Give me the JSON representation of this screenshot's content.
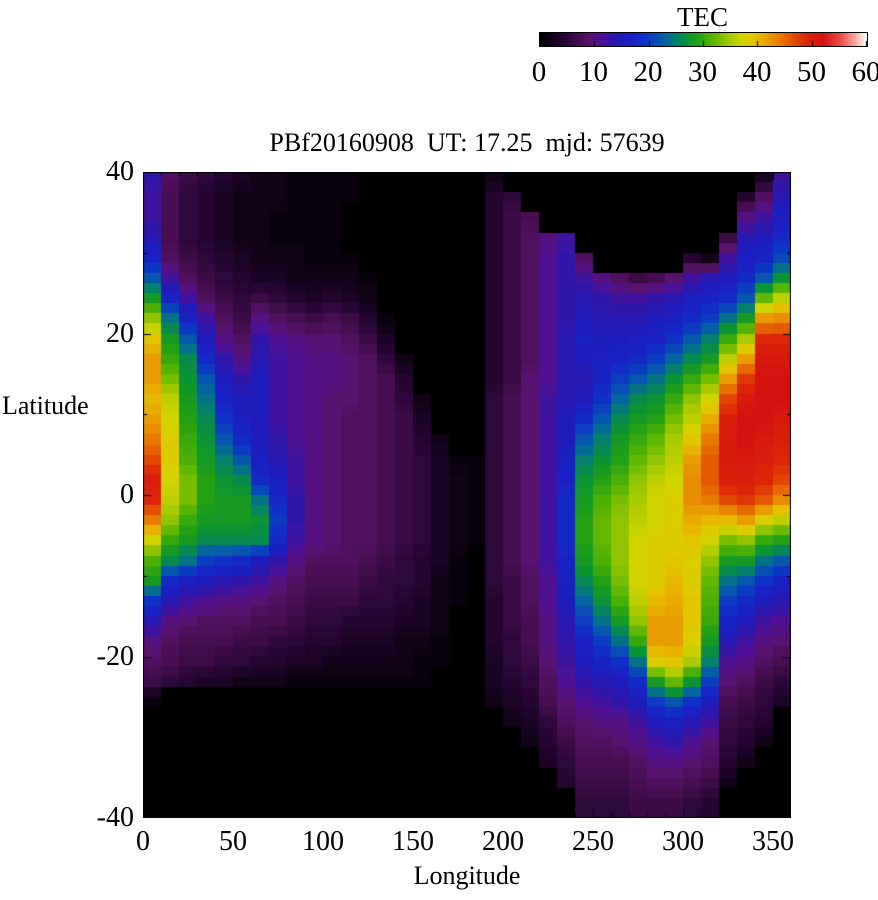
{
  "colorbar": {
    "title": "TEC",
    "min": 0,
    "max": 60,
    "tick_values": [
      0,
      10,
      20,
      30,
      40,
      50,
      60
    ],
    "tick_labels": [
      "0",
      "10",
      "20",
      "30",
      "40",
      "50",
      "60"
    ],
    "palette_stops": [
      [
        0,
        0,
        0,
        0
      ],
      [
        3,
        28,
        4,
        38
      ],
      [
        5,
        45,
        8,
        58
      ],
      [
        7,
        70,
        14,
        80
      ],
      [
        9,
        88,
        18,
        112
      ],
      [
        10,
        84,
        17,
        130
      ],
      [
        11,
        80,
        16,
        148
      ],
      [
        13,
        48,
        22,
        168
      ],
      [
        15,
        30,
        28,
        188
      ],
      [
        17,
        26,
        34,
        198
      ],
      [
        19,
        16,
        48,
        200
      ],
      [
        21,
        8,
        72,
        185
      ],
      [
        23,
        4,
        100,
        160
      ],
      [
        25,
        4,
        128,
        108
      ],
      [
        27,
        10,
        148,
        52
      ],
      [
        29,
        35,
        160,
        20
      ],
      [
        31,
        75,
        175,
        5
      ],
      [
        33,
        120,
        190,
        0
      ],
      [
        35,
        170,
        202,
        0
      ],
      [
        37,
        210,
        212,
        0
      ],
      [
        39,
        228,
        198,
        0
      ],
      [
        41,
        232,
        172,
        0
      ],
      [
        43,
        232,
        140,
        0
      ],
      [
        45,
        230,
        105,
        0
      ],
      [
        47,
        226,
        70,
        4
      ],
      [
        49,
        220,
        38,
        10
      ],
      [
        52,
        212,
        18,
        16
      ],
      [
        55,
        232,
        72,
        64
      ],
      [
        58,
        246,
        170,
        164
      ],
      [
        60,
        255,
        255,
        255
      ]
    ]
  },
  "plot": {
    "title": "PBf20160908  UT: 17.25  mjd: 57639",
    "xlabel": "Longitude",
    "ylabel": "Latitude",
    "x_tick_values": [
      0,
      50,
      100,
      150,
      200,
      250,
      300,
      350
    ],
    "x_tick_labels": [
      "0",
      "50",
      "100",
      "150",
      "200",
      "250",
      "300",
      "350"
    ],
    "y_tick_values": [
      40,
      20,
      0,
      -20,
      -40
    ],
    "y_tick_labels": [
      "40",
      "20",
      "0",
      "-20",
      "-40"
    ]
  },
  "chart_data": {
    "type": "heatmap",
    "title": "PBf20160908  UT: 17.25  mjd: 57639",
    "xlabel": "Longitude",
    "ylabel": "Latitude",
    "xlim": [
      0,
      360
    ],
    "ylim": [
      -40,
      40
    ],
    "x_minor_step": 10,
    "y_minor_step": 10,
    "colorbar_title": "TEC",
    "colorbar_range": [
      0,
      60
    ],
    "lon_step_deg": 10,
    "lat_step_deg": 2.5,
    "lon_col_centers": [
      5,
      15,
      25,
      35,
      45,
      55,
      65,
      75,
      85,
      95,
      105,
      115,
      125,
      135,
      145,
      155,
      165,
      175,
      185,
      195,
      205,
      215,
      225,
      235,
      245,
      255,
      265,
      275,
      285,
      295,
      305,
      315,
      325,
      335,
      345,
      355
    ],
    "lat_row_centers": [
      38.75,
      36.25,
      33.75,
      31.25,
      28.75,
      26.25,
      23.75,
      21.25,
      18.75,
      16.25,
      13.75,
      11.25,
      8.75,
      6.25,
      3.75,
      1.25,
      -1.25,
      -3.75,
      -6.25,
      -8.75,
      -11.25,
      -13.75,
      -16.25,
      -18.75,
      -21.25,
      -23.75,
      -26.25,
      -28.75,
      -31.25,
      -33.75,
      -36.25,
      -38.75
    ],
    "values_orientation": "outer array = longitude columns 0..360 step 10; inner array = TEC values from lat +40 (top) to -40 (bottom), 2.5 deg cells",
    "values_cols_by_lon": [
      [
        13,
        12,
        12,
        14,
        17,
        22,
        28,
        34,
        39,
        42,
        42,
        40,
        42,
        44,
        47,
        50,
        49,
        44,
        37,
        31,
        28,
        19,
        14,
        10,
        8,
        6,
        1,
        0,
        0,
        0,
        0,
        0
      ],
      [
        8,
        7,
        7,
        7,
        8,
        12,
        17,
        24,
        28,
        30,
        33,
        36,
        37,
        38,
        38,
        37,
        36,
        34,
        30,
        26,
        18,
        14,
        10,
        8,
        7,
        5,
        0,
        0,
        0,
        0,
        0,
        0
      ],
      [
        6,
        5,
        5,
        5,
        6,
        8,
        12,
        17,
        22,
        26,
        27,
        28,
        29,
        30,
        31,
        33,
        33,
        30,
        28,
        24,
        16,
        12,
        9,
        7,
        6,
        4,
        0,
        0,
        0,
        0,
        0,
        0
      ],
      [
        5,
        4,
        4,
        4,
        5,
        6,
        8,
        12,
        15,
        18,
        22,
        24,
        26,
        27,
        28,
        29,
        29,
        28,
        26,
        20,
        15,
        11,
        8,
        7,
        6,
        3,
        0,
        0,
        0,
        0,
        0,
        0
      ],
      [
        4,
        3,
        3,
        3,
        4,
        5,
        6,
        8,
        10,
        13,
        15,
        17,
        19,
        22,
        25,
        27,
        28,
        28,
        26,
        19,
        14,
        10,
        8,
        7,
        5,
        3,
        0,
        0,
        0,
        0,
        0,
        0
      ],
      [
        3,
        2,
        2,
        2,
        3,
        4,
        5,
        6,
        8,
        10,
        13,
        15,
        16,
        18,
        22,
        26,
        28,
        28,
        26,
        18,
        13,
        10,
        8,
        6,
        5,
        2,
        0,
        0,
        0,
        0,
        0,
        0
      ],
      [
        2,
        2,
        2,
        2,
        2,
        3,
        6,
        10,
        13,
        14,
        15,
        15,
        15,
        15,
        16,
        18,
        24,
        27,
        26,
        15,
        12,
        9,
        7,
        6,
        4,
        2,
        0,
        0,
        0,
        0,
        0,
        0
      ],
      [
        2,
        2,
        1,
        1,
        2,
        3,
        5,
        8,
        11,
        12,
        12,
        12,
        12,
        13,
        14,
        16,
        18,
        20,
        18,
        13,
        10,
        8,
        7,
        5,
        4,
        2,
        0,
        0,
        0,
        0,
        0,
        0
      ],
      [
        1,
        1,
        1,
        1,
        2,
        2,
        4,
        7,
        10,
        11,
        11,
        11,
        11,
        11,
        12,
        12,
        13,
        13,
        12,
        10,
        8,
        7,
        6,
        5,
        3,
        1,
        0,
        0,
        0,
        0,
        0,
        0
      ],
      [
        1,
        1,
        1,
        1,
        1,
        2,
        3,
        6,
        9,
        10,
        10,
        10,
        10,
        10,
        10,
        10,
        10,
        10,
        10,
        8,
        7,
        6,
        5,
        4,
        3,
        1,
        0,
        0,
        0,
        0,
        0,
        0
      ],
      [
        1,
        1,
        1,
        1,
        1,
        2,
        4,
        7,
        9,
        10,
        10,
        9,
        9,
        9,
        9,
        9,
        9,
        9,
        9,
        8,
        7,
        6,
        5,
        4,
        2,
        1,
        0,
        0,
        0,
        0,
        0,
        0
      ],
      [
        1,
        1,
        0,
        0,
        1,
        2,
        3,
        6,
        8,
        9,
        9,
        9,
        8,
        8,
        8,
        8,
        8,
        8,
        8,
        8,
        7,
        6,
        4,
        3,
        2,
        1,
        0,
        0,
        0,
        0,
        0,
        0
      ],
      [
        0,
        0,
        0,
        0,
        0,
        1,
        2,
        4,
        6,
        8,
        8,
        8,
        8,
        8,
        8,
        8,
        8,
        8,
        8,
        7,
        6,
        5,
        4,
        3,
        2,
        1,
        0,
        0,
        0,
        0,
        0,
        0
      ],
      [
        0,
        0,
        0,
        0,
        0,
        0,
        0,
        1,
        3,
        5,
        7,
        7,
        7,
        7,
        7,
        7,
        7,
        7,
        7,
        6,
        5,
        5,
        4,
        3,
        2,
        1,
        0,
        0,
        0,
        0,
        0,
        0
      ],
      [
        0,
        0,
        0,
        0,
        0,
        0,
        0,
        0,
        0,
        2,
        4,
        5,
        6,
        6,
        6,
        6,
        6,
        6,
        6,
        5,
        5,
        4,
        3,
        2,
        2,
        1,
        0,
        0,
        0,
        0,
        0,
        0
      ],
      [
        0,
        0,
        0,
        0,
        0,
        0,
        0,
        0,
        0,
        0,
        0,
        2,
        3,
        4,
        5,
        5,
        5,
        5,
        5,
        4,
        4,
        3,
        3,
        2,
        1,
        1,
        0,
        0,
        0,
        0,
        0,
        0
      ],
      [
        0,
        0,
        0,
        0,
        0,
        0,
        0,
        0,
        0,
        0,
        0,
        0,
        0,
        2,
        3,
        3,
        3,
        3,
        3,
        3,
        2,
        2,
        2,
        1,
        1,
        0,
        0,
        0,
        0,
        0,
        0,
        0
      ],
      [
        0,
        0,
        0,
        0,
        0,
        0,
        0,
        0,
        0,
        0,
        0,
        0,
        0,
        0,
        1,
        2,
        2,
        2,
        2,
        1,
        1,
        1,
        0,
        0,
        0,
        0,
        0,
        0,
        0,
        0,
        0,
        0
      ],
      [
        0,
        0,
        0,
        0,
        0,
        0,
        0,
        0,
        0,
        0,
        0,
        0,
        0,
        0,
        1,
        1,
        1,
        1,
        1,
        0,
        0,
        0,
        0,
        0,
        0,
        0,
        0,
        0,
        0,
        0,
        0,
        0
      ],
      [
        2,
        4,
        4,
        4,
        4,
        4,
        4,
        4,
        4,
        4,
        4,
        5,
        5,
        5,
        5,
        5,
        5,
        5,
        5,
        5,
        5,
        4,
        4,
        4,
        3,
        3,
        2,
        0,
        0,
        0,
        0,
        0
      ],
      [
        0,
        5,
        6,
        6,
        6,
        6,
        6,
        6,
        6,
        6,
        6,
        7,
        7,
        7,
        7,
        7,
        7,
        7,
        7,
        7,
        6,
        6,
        6,
        5,
        5,
        4,
        3,
        2,
        0,
        0,
        0,
        0
      ],
      [
        0,
        0,
        7,
        8,
        8,
        8,
        8,
        8,
        8,
        8,
        9,
        9,
        9,
        9,
        9,
        9,
        9,
        9,
        9,
        9,
        8,
        8,
        7,
        7,
        6,
        5,
        4,
        3,
        2,
        0,
        0,
        0
      ],
      [
        0,
        0,
        0,
        10,
        11,
        11,
        11,
        11,
        11,
        11,
        11,
        12,
        12,
        12,
        12,
        12,
        12,
        12,
        12,
        12,
        11,
        11,
        10,
        10,
        9,
        8,
        7,
        5,
        4,
        3,
        0,
        0
      ],
      [
        0,
        0,
        0,
        12,
        13,
        13,
        13,
        13,
        14,
        14,
        14,
        14,
        15,
        15,
        16,
        17,
        18,
        18,
        18,
        17,
        16,
        15,
        14,
        13,
        12,
        11,
        9,
        8,
        6,
        5,
        4,
        0
      ],
      [
        0,
        0,
        0,
        0,
        8,
        12,
        14,
        15,
        16,
        15,
        14,
        15,
        18,
        22,
        25,
        27,
        28,
        29,
        29,
        28,
        26,
        23,
        20,
        17,
        15,
        13,
        11,
        9,
        8,
        7,
        6,
        5
      ],
      [
        0,
        0,
        0,
        0,
        0,
        10,
        13,
        14,
        15,
        16,
        17,
        19,
        22,
        25,
        27,
        29,
        31,
        32,
        32,
        31,
        29,
        27,
        24,
        20,
        17,
        14,
        12,
        10,
        8,
        7,
        6,
        5
      ],
      [
        0,
        0,
        0,
        0,
        0,
        8,
        12,
        14,
        15,
        17,
        20,
        23,
        26,
        28,
        29,
        31,
        33,
        34,
        34,
        34,
        33,
        31,
        28,
        24,
        19,
        15,
        13,
        10,
        9,
        7,
        6,
        5
      ],
      [
        0,
        0,
        0,
        0,
        0,
        6,
        12,
        14,
        16,
        18,
        22,
        26,
        28,
        30,
        32,
        34,
        35,
        36,
        37,
        37,
        37,
        36,
        34,
        30,
        24,
        18,
        15,
        12,
        10,
        8,
        7,
        6
      ],
      [
        0,
        0,
        0,
        0,
        0,
        7,
        13,
        15,
        17,
        20,
        24,
        27,
        29,
        32,
        34,
        36,
        37,
        37,
        38,
        38,
        38,
        40,
        42,
        42,
        38,
        28,
        20,
        15,
        12,
        10,
        8,
        6
      ],
      [
        0,
        0,
        0,
        0,
        0,
        9,
        14,
        16,
        19,
        23,
        27,
        30,
        33,
        35,
        36,
        37,
        38,
        38,
        38,
        39,
        40,
        41,
        42,
        42,
        39,
        32,
        22,
        16,
        13,
        10,
        8,
        6
      ],
      [
        0,
        0,
        0,
        0,
        4,
        12,
        16,
        18,
        22,
        26,
        30,
        34,
        36,
        39,
        42,
        43,
        43,
        41,
        39,
        38,
        38,
        39,
        39,
        38,
        35,
        27,
        19,
        14,
        11,
        9,
        7,
        5
      ],
      [
        0,
        0,
        0,
        0,
        2,
        14,
        17,
        20,
        25,
        28,
        33,
        37,
        41,
        44,
        46,
        46,
        44,
        40,
        37,
        34,
        32,
        31,
        30,
        28,
        25,
        20,
        15,
        12,
        9,
        8,
        6,
        4
      ],
      [
        0,
        0,
        0,
        6,
        12,
        15,
        18,
        24,
        30,
        36,
        42,
        47,
        50,
        51,
        51,
        50,
        47,
        40,
        33,
        28,
        24,
        20,
        17,
        14,
        11,
        9,
        7,
        6,
        5,
        4,
        2,
        0
      ],
      [
        0,
        4,
        10,
        14,
        16,
        18,
        22,
        28,
        35,
        42,
        48,
        51,
        52,
        52,
        51,
        50,
        48,
        42,
        34,
        28,
        22,
        18,
        15,
        12,
        10,
        8,
        6,
        5,
        4,
        2,
        0,
        0
      ],
      [
        3,
        8,
        12,
        15,
        17,
        22,
        32,
        42,
        49,
        51,
        52,
        52,
        52,
        51,
        50,
        49,
        46,
        38,
        30,
        24,
        19,
        15,
        12,
        10,
        8,
        6,
        5,
        4,
        2,
        0,
        0,
        0
      ],
      [
        12,
        14,
        16,
        18,
        21,
        27,
        36,
        43,
        49,
        51,
        52,
        52,
        51,
        50,
        49,
        47,
        43,
        36,
        29,
        22,
        17,
        14,
        11,
        9,
        7,
        5,
        3,
        0,
        0,
        0,
        0,
        0
      ]
    ]
  }
}
